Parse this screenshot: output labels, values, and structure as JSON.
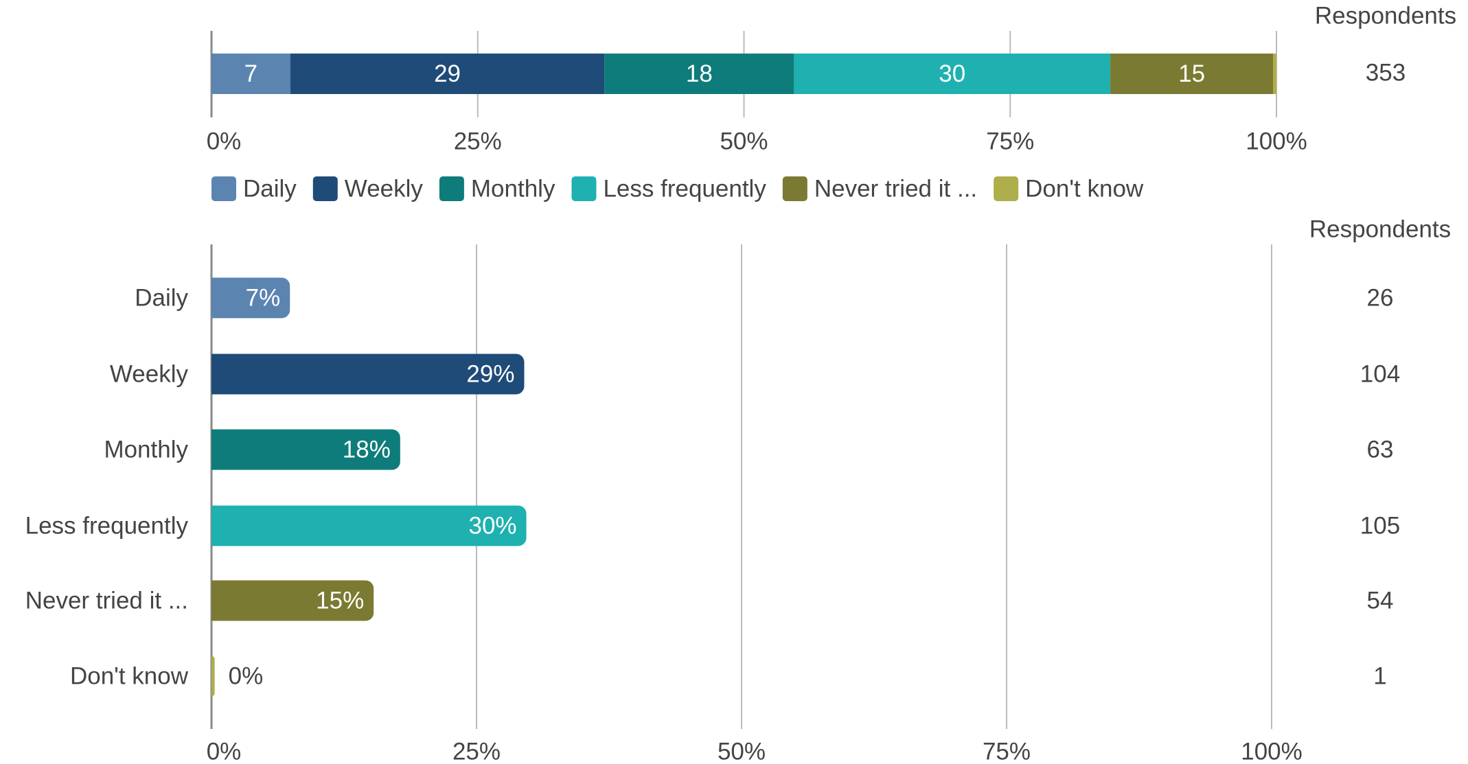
{
  "chart_data": [
    {
      "type": "stacked_bar",
      "series": [
        {
          "name": "Daily",
          "color": "#5b84b1",
          "values": [
            7.4
          ],
          "value_labels": [
            "7"
          ]
        },
        {
          "name": "Weekly",
          "color": "#1f4b78",
          "values": [
            29.5
          ],
          "value_labels": [
            "29"
          ]
        },
        {
          "name": "Monthly",
          "color": "#0e7c7b",
          "values": [
            17.8
          ],
          "value_labels": [
            "18"
          ]
        },
        {
          "name": "Less frequently",
          "color": "#1fb0b0",
          "values": [
            29.7
          ],
          "value_labels": [
            "30"
          ]
        },
        {
          "name": "Never tried it ...",
          "color": "#7b7a32",
          "values": [
            15.3
          ],
          "value_labels": [
            "15"
          ]
        },
        {
          "name": "Don't know",
          "color": "#aeae4a",
          "values": [
            0.3
          ]
        }
      ],
      "xlim": [
        0,
        100
      ],
      "xticks": [
        {
          "value": 0,
          "label": "0%"
        },
        {
          "value": 25,
          "label": "25%"
        },
        {
          "value": 50,
          "label": "50%"
        },
        {
          "value": 75,
          "label": "75%"
        },
        {
          "value": 100,
          "label": "100%"
        }
      ],
      "grid": true,
      "legend": "bottom",
      "respondents_label": "Respondents",
      "respondents": [
        353
      ]
    },
    {
      "type": "bar",
      "orientation": "horizontal",
      "categories": [
        "Daily",
        "Weekly",
        "Monthly",
        "Less frequently",
        "Never tried it ...",
        "Don't know"
      ],
      "values": [
        7.4,
        29.5,
        17.8,
        29.7,
        15.3,
        0.3
      ],
      "value_labels": [
        "7%",
        "29%",
        "18%",
        "30%",
        "15%",
        "0%"
      ],
      "colors": [
        "#5b84b1",
        "#1f4b78",
        "#0e7c7b",
        "#1fb0b0",
        "#7b7a32",
        "#aeae4a"
      ],
      "xlim": [
        0,
        100
      ],
      "xticks": [
        {
          "value": 0,
          "label": "0%"
        },
        {
          "value": 25,
          "label": "25%"
        },
        {
          "value": 50,
          "label": "50%"
        },
        {
          "value": 75,
          "label": "75%"
        },
        {
          "value": 100,
          "label": "100%"
        }
      ],
      "grid": true,
      "respondents_label": "Respondents",
      "respondents": [
        26,
        104,
        63,
        105,
        54,
        1
      ]
    }
  ]
}
